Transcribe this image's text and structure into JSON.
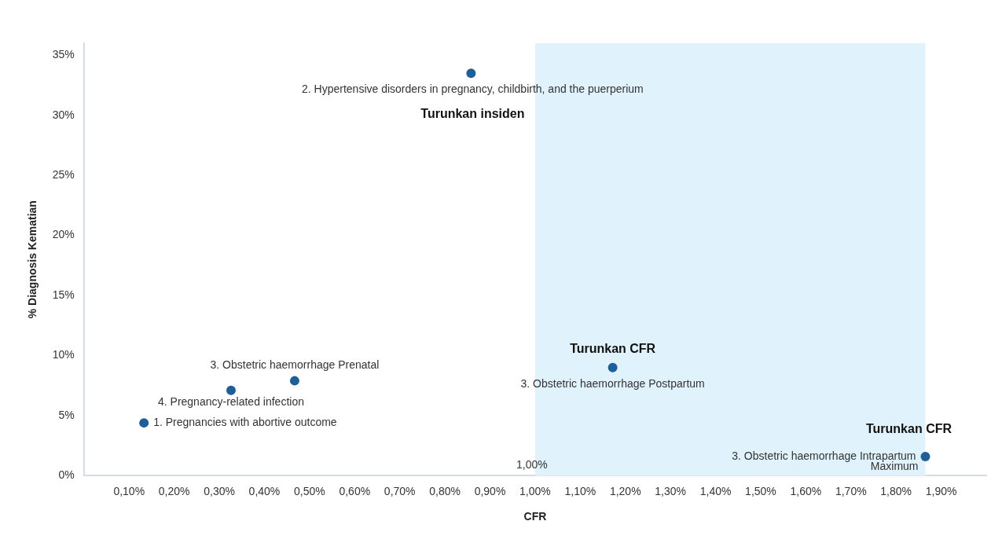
{
  "chart_data": {
    "type": "scatter",
    "xlabel": "CFR",
    "ylabel": "% Diagnosis Kematian",
    "x": [
      0.133,
      0.326,
      0.467,
      0.858,
      1.172,
      1.865
    ],
    "values": [
      4.4,
      7.1,
      7.9,
      33.5,
      9.0,
      1.6
    ],
    "color": "#1f5f99",
    "marker": "circle",
    "grid": false,
    "legend": false,
    "xlim": [
      0,
      2.0
    ],
    "ylim": [
      0,
      36
    ],
    "xticks": [
      {
        "value": 0.1,
        "label": "0,10%"
      },
      {
        "value": 0.2,
        "label": "0,20%"
      },
      {
        "value": 0.3,
        "label": "0,30%"
      },
      {
        "value": 0.4,
        "label": "0,40%"
      },
      {
        "value": 0.5,
        "label": "0,50%"
      },
      {
        "value": 0.6,
        "label": "0,60%"
      },
      {
        "value": 0.7,
        "label": "0,70%"
      },
      {
        "value": 0.8,
        "label": "0,80%"
      },
      {
        "value": 0.9,
        "label": "0,90%"
      },
      {
        "value": 1.0,
        "label": "1,00%"
      },
      {
        "value": 1.1,
        "label": "1,10%"
      },
      {
        "value": 1.2,
        "label": "1,20%"
      },
      {
        "value": 1.3,
        "label": "1,30%"
      },
      {
        "value": 1.4,
        "label": "1,40%"
      },
      {
        "value": 1.5,
        "label": "1,50%"
      },
      {
        "value": 1.6,
        "label": "1,60%"
      },
      {
        "value": 1.7,
        "label": "1,70%"
      },
      {
        "value": 1.8,
        "label": "1,80%"
      },
      {
        "value": 1.9,
        "label": "1,90%"
      }
    ],
    "yticks": [
      {
        "value": 0,
        "label": "0%"
      },
      {
        "value": 5,
        "label": "5%"
      },
      {
        "value": 10,
        "label": "10%"
      },
      {
        "value": 15,
        "label": "15%"
      },
      {
        "value": 20,
        "label": "20%"
      },
      {
        "value": 25,
        "label": "25%"
      },
      {
        "value": 30,
        "label": "30%"
      },
      {
        "value": 35,
        "label": "35%"
      }
    ],
    "bands": [
      {
        "axis": "x",
        "from": 1.0,
        "to": 1.865,
        "label": "1,00%",
        "color": "#e0f2fc"
      }
    ],
    "annotations": [
      {
        "text": "2. Hypertensive disorders in pregnancy, childbirth, and the puerperium",
        "x": 0.858,
        "y": 33.5
      },
      {
        "text": "Turunkan insiden",
        "x": 0.858,
        "y": 33.5
      },
      {
        "text": "3. Obstetric haemorrhage Prenatal",
        "x": 0.467,
        "y": 7.9
      },
      {
        "text": "4. Pregnancy-related infection",
        "x": 0.326,
        "y": 7.1
      },
      {
        "text": "1. Pregnancies with abortive outcome",
        "x": 0.133,
        "y": 4.4
      },
      {
        "text": "Turunkan CFR",
        "x": 1.172,
        "y": 9.0
      },
      {
        "text": "3. Obstetric haemorrhage Postpartum",
        "x": 1.172,
        "y": 9.0
      },
      {
        "text": "Turunkan CFR",
        "x": 1.865,
        "y": 1.6
      },
      {
        "text": "3. Obstetric haemorrhage Intrapartum",
        "x": 1.865,
        "y": 1.6
      },
      {
        "text": "Maximum",
        "x": 1.865,
        "y": 0
      }
    ]
  }
}
